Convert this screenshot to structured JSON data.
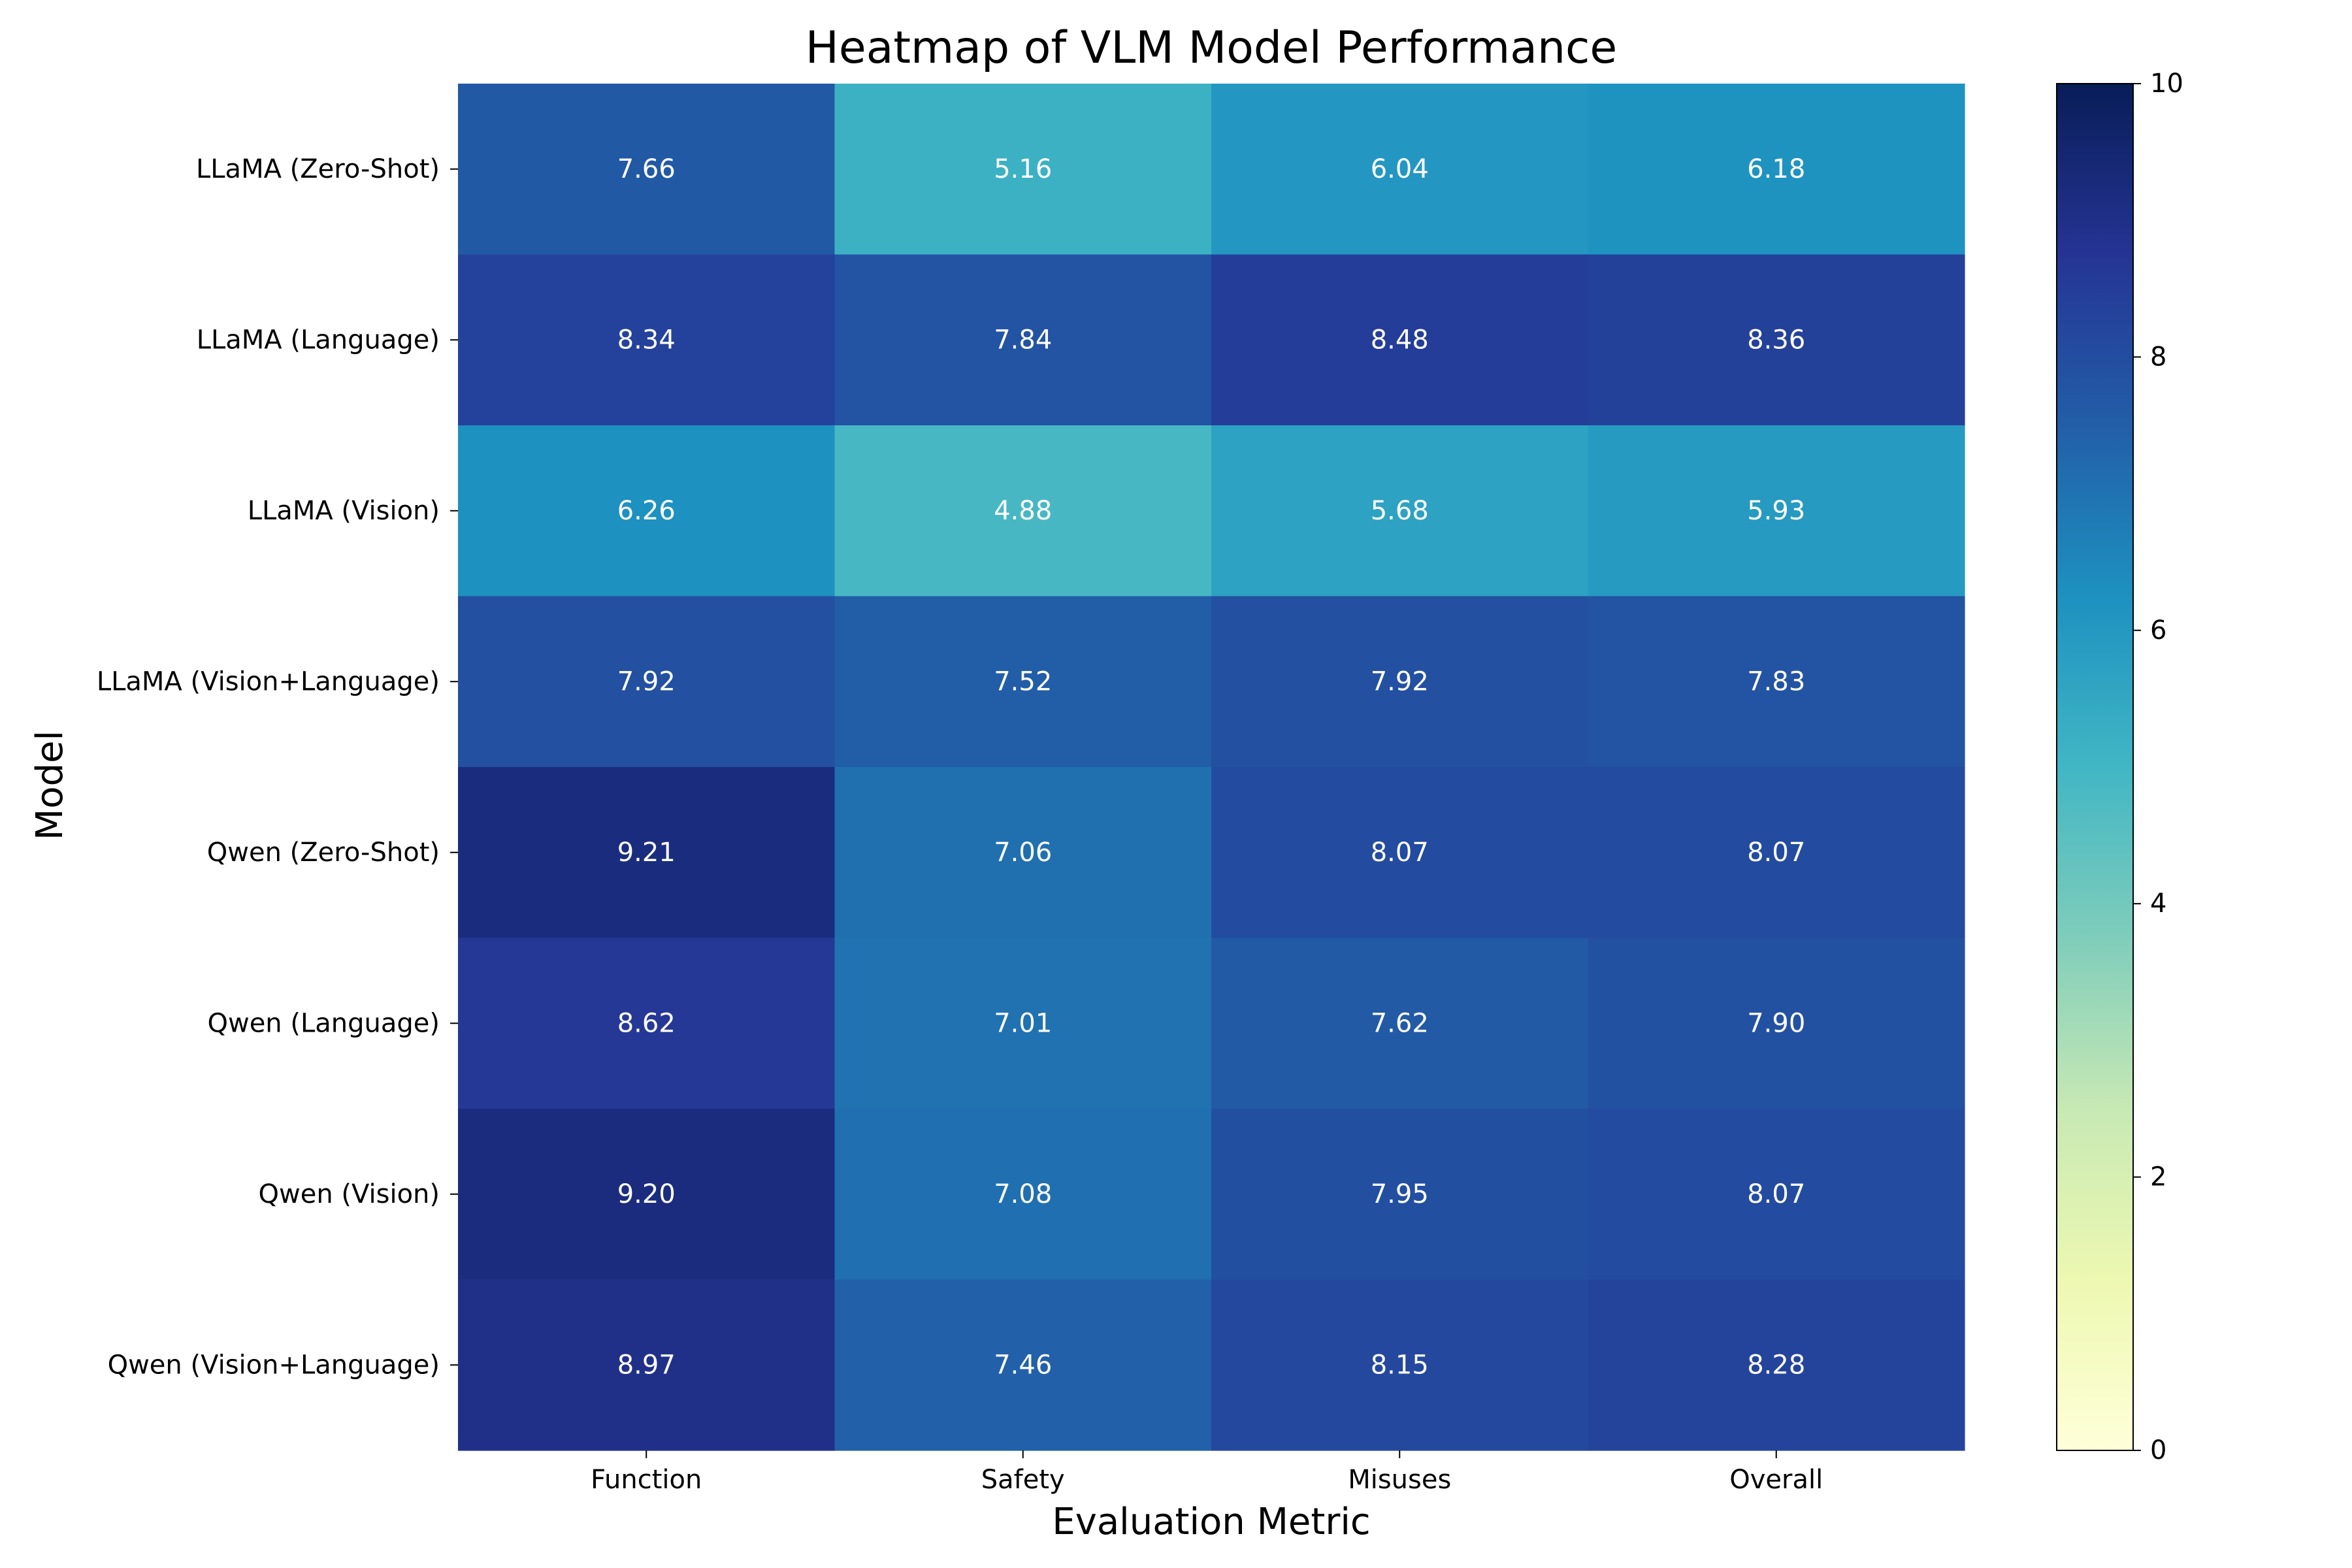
{
  "chart_data": {
    "type": "heatmap",
    "title": "Heatmap of VLM Model Performance",
    "xlabel": "Evaluation Metric",
    "ylabel": "Model",
    "x_categories": [
      "Function",
      "Safety",
      "Misuses",
      "Overall"
    ],
    "y_categories": [
      "LLaMA (Zero-Shot)",
      "LLaMA (Language)",
      "LLaMA (Vision)",
      "LLaMA (Vision+Language)",
      "Qwen (Zero-Shot)",
      "Qwen (Language)",
      "Qwen (Vision)",
      "Qwen (Vision+Language)"
    ],
    "values": [
      [
        7.66,
        5.16,
        6.04,
        6.18
      ],
      [
        8.34,
        7.84,
        8.48,
        8.36
      ],
      [
        6.26,
        4.88,
        5.68,
        5.93
      ],
      [
        7.92,
        7.52,
        7.92,
        7.83
      ],
      [
        9.21,
        7.06,
        8.07,
        8.07
      ],
      [
        8.62,
        7.01,
        7.62,
        7.9
      ],
      [
        9.2,
        7.08,
        7.95,
        8.07
      ],
      [
        8.97,
        7.46,
        8.15,
        8.28
      ]
    ],
    "value_labels": [
      [
        "7.66",
        "5.16",
        "6.04",
        "6.18"
      ],
      [
        "8.34",
        "7.84",
        "8.48",
        "8.36"
      ],
      [
        "6.26",
        "4.88",
        "5.68",
        "5.93"
      ],
      [
        "7.92",
        "7.52",
        "7.92",
        "7.83"
      ],
      [
        "9.21",
        "7.06",
        "8.07",
        "8.07"
      ],
      [
        "8.62",
        "7.01",
        "7.62",
        "7.90"
      ],
      [
        "9.20",
        "7.08",
        "7.95",
        "8.07"
      ],
      [
        "8.97",
        "7.46",
        "8.15",
        "8.28"
      ]
    ],
    "colorbar": {
      "range": [
        0,
        10
      ],
      "ticks": [
        0,
        2,
        4,
        6,
        8,
        10
      ],
      "tick_labels": [
        "0",
        "2",
        "4",
        "6",
        "8",
        "10"
      ],
      "colormap": "YlGnBu",
      "placement": "right"
    },
    "colormap_stops": [
      "#ffffd9",
      "#edf8b1",
      "#c7e9b4",
      "#7fcdbb",
      "#41b6c4",
      "#1d91c0",
      "#225ea8",
      "#253494",
      "#081d58"
    ],
    "cell_text_color": "#ffffff"
  }
}
